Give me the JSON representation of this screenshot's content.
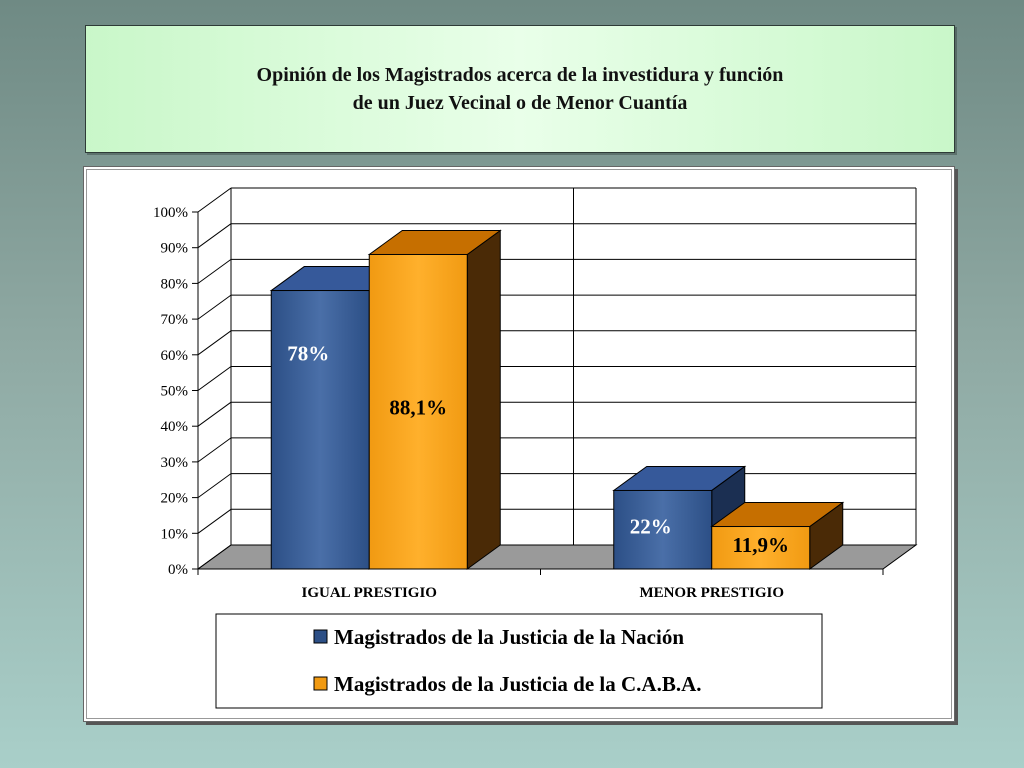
{
  "title": {
    "line1": "Opinión de los Magistrados acerca de la investidura y función",
    "line2": "de un Juez Vecinal o de Menor Cuantía"
  },
  "colors": {
    "series1": "#2c4f86",
    "series1_top": "#36599a",
    "series1_side": "#1b2f52",
    "series2": "#f19a12",
    "series2_top": "#c66f00",
    "series2_side": "#4a2a06",
    "floor": "#9a9a9a",
    "grid": "#000000"
  },
  "chart_data": {
    "type": "bar",
    "categories": [
      "IGUAL PRESTIGIO",
      "MENOR PRESTIGIO"
    ],
    "series": [
      {
        "name": "Magistrados de la Justicia de la Nación",
        "values": [
          78,
          22
        ],
        "labels": [
          "78%",
          "22%"
        ]
      },
      {
        "name": "Magistrados de la Justicia de la C.A.B.A.",
        "values": [
          88.1,
          11.9
        ],
        "labels": [
          "88,1%",
          "11,9%"
        ]
      }
    ],
    "ylim": [
      0,
      100
    ],
    "yticks": [
      "0%",
      "10%",
      "20%",
      "30%",
      "40%",
      "50%",
      "60%",
      "70%",
      "80%",
      "90%",
      "100%"
    ],
    "grid": true,
    "legend": "bottom",
    "three_d": true
  }
}
